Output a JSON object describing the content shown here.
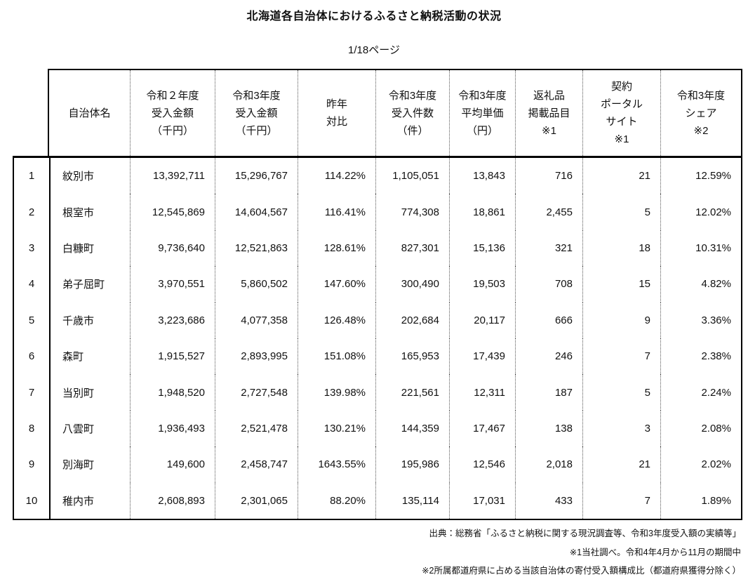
{
  "title": "北海道各自治体におけるふるさと納税活動の状況",
  "page_indicator": "1/18ページ",
  "colors": {
    "table_border": "#000000",
    "column_divider_dotted": "#555555",
    "background": "#ffffff",
    "text": "#111111"
  },
  "table": {
    "columns": [
      {
        "id": "name",
        "lines": [
          "自治体名"
        ]
      },
      {
        "id": "r2_amount",
        "lines": [
          "令和２年度",
          "受入金額",
          "（千円）"
        ]
      },
      {
        "id": "r3_amount",
        "lines": [
          "令和3年度",
          "受入金額",
          "（千円）"
        ]
      },
      {
        "id": "yoy",
        "lines": [
          "昨年",
          "対比"
        ]
      },
      {
        "id": "r3_count",
        "lines": [
          "令和3年度",
          "受入件数",
          "（件）"
        ]
      },
      {
        "id": "r3_avg",
        "lines": [
          "令和3年度",
          "平均単価",
          "（円）"
        ]
      },
      {
        "id": "gift_items",
        "lines": [
          "返礼品",
          "掲載品目",
          "※1"
        ]
      },
      {
        "id": "portal",
        "lines": [
          "契約",
          "ポータル",
          "サイト",
          "※1"
        ]
      },
      {
        "id": "share",
        "lines": [
          "令和3年度",
          "シェア",
          "※2"
        ]
      }
    ],
    "rows": [
      {
        "rank": "1",
        "name": "紋別市",
        "r2_amount": "13,392,711",
        "r3_amount": "15,296,767",
        "yoy": "114.22%",
        "r3_count": "1,105,051",
        "r3_avg": "13,843",
        "gift_items": "716",
        "portal": "21",
        "share": "12.59%"
      },
      {
        "rank": "2",
        "name": "根室市",
        "r2_amount": "12,545,869",
        "r3_amount": "14,604,567",
        "yoy": "116.41%",
        "r3_count": "774,308",
        "r3_avg": "18,861",
        "gift_items": "2,455",
        "portal": "5",
        "share": "12.02%"
      },
      {
        "rank": "3",
        "name": "白糠町",
        "r2_amount": "9,736,640",
        "r3_amount": "12,521,863",
        "yoy": "128.61%",
        "r3_count": "827,301",
        "r3_avg": "15,136",
        "gift_items": "321",
        "portal": "18",
        "share": "10.31%"
      },
      {
        "rank": "4",
        "name": "弟子屈町",
        "r2_amount": "3,970,551",
        "r3_amount": "5,860,502",
        "yoy": "147.60%",
        "r3_count": "300,490",
        "r3_avg": "19,503",
        "gift_items": "708",
        "portal": "15",
        "share": "4.82%"
      },
      {
        "rank": "5",
        "name": "千歳市",
        "r2_amount": "3,223,686",
        "r3_amount": "4,077,358",
        "yoy": "126.48%",
        "r3_count": "202,684",
        "r3_avg": "20,117",
        "gift_items": "666",
        "portal": "9",
        "share": "3.36%"
      },
      {
        "rank": "6",
        "name": "森町",
        "r2_amount": "1,915,527",
        "r3_amount": "2,893,995",
        "yoy": "151.08%",
        "r3_count": "165,953",
        "r3_avg": "17,439",
        "gift_items": "246",
        "portal": "7",
        "share": "2.38%"
      },
      {
        "rank": "7",
        "name": "当別町",
        "r2_amount": "1,948,520",
        "r3_amount": "2,727,548",
        "yoy": "139.98%",
        "r3_count": "221,561",
        "r3_avg": "12,311",
        "gift_items": "187",
        "portal": "5",
        "share": "2.24%"
      },
      {
        "rank": "8",
        "name": "八雲町",
        "r2_amount": "1,936,493",
        "r3_amount": "2,521,478",
        "yoy": "130.21%",
        "r3_count": "144,359",
        "r3_avg": "17,467",
        "gift_items": "138",
        "portal": "3",
        "share": "2.08%"
      },
      {
        "rank": "9",
        "name": "別海町",
        "r2_amount": "149,600",
        "r3_amount": "2,458,747",
        "yoy": "1643.55%",
        "r3_count": "195,986",
        "r3_avg": "12,546",
        "gift_items": "2,018",
        "portal": "21",
        "share": "2.02%"
      },
      {
        "rank": "10",
        "name": "稚内市",
        "r2_amount": "2,608,893",
        "r3_amount": "2,301,065",
        "yoy": "88.20%",
        "r3_count": "135,114",
        "r3_avg": "17,031",
        "gift_items": "433",
        "portal": "7",
        "share": "1.89%"
      }
    ]
  },
  "footnotes": [
    "出典：総務省「ふるさと納税に関する現況調査等、令和3年度受入額の実績等」",
    "※1当社調べ。令和4年4月から11月の期間中",
    "※2所属都道府県に占める当該自治体の寄付受入額構成比（都道府県獲得分除く）"
  ]
}
